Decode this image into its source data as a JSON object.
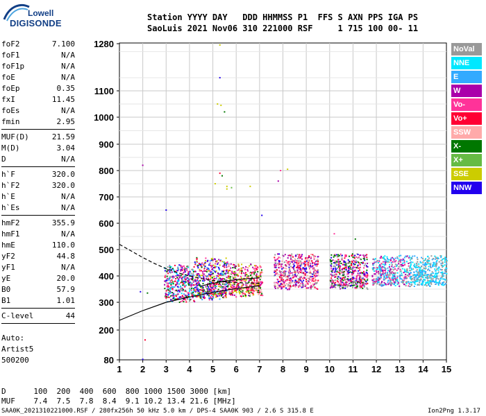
{
  "logo": {
    "line1": "Lowell",
    "line2": "DIGISONDE"
  },
  "header": {
    "row1": "Station YYYY DAY   DDD HHMMSS P1  FFS S AXN PPS IGA PS",
    "row2": "SaoLuis 2021 Nov06 310 221000 RSF     1 715 100 00- 11"
  },
  "params_groups": [
    [
      {
        "label": "foF2",
        "value": "7.100"
      },
      {
        "label": "foF1",
        "value": "N/A"
      },
      {
        "label": "foF1p",
        "value": "N/A"
      },
      {
        "label": "foE",
        "value": "N/A"
      },
      {
        "label": "foEp",
        "value": "0.35"
      },
      {
        "label": "fxI",
        "value": "11.45"
      },
      {
        "label": "foEs",
        "value": "N/A"
      },
      {
        "label": "fmin",
        "value": "2.95"
      }
    ],
    [
      {
        "label": "MUF(D)",
        "value": "21.59"
      },
      {
        "label": "M(D)",
        "value": "3.04"
      },
      {
        "label": "D",
        "value": "N/A"
      }
    ],
    [
      {
        "label": "h`F",
        "value": "320.0"
      },
      {
        "label": "h`F2",
        "value": "320.0"
      },
      {
        "label": "h`E",
        "value": "N/A"
      },
      {
        "label": "h`Es",
        "value": "N/A"
      }
    ],
    [
      {
        "label": "hmF2",
        "value": "355.9"
      },
      {
        "label": "hmF1",
        "value": "N/A"
      },
      {
        "label": "hmE",
        "value": "110.0"
      },
      {
        "label": "yF2",
        "value": "44.8"
      },
      {
        "label": "yF1",
        "value": "N/A"
      },
      {
        "label": "yE",
        "value": "20.0"
      },
      {
        "label": "B0",
        "value": "57.9"
      },
      {
        "label": "B1",
        "value": "1.01"
      }
    ],
    [
      {
        "label": "C-level",
        "value": "44"
      }
    ]
  ],
  "notes": [
    "Auto:",
    "Artist5",
    "500200"
  ],
  "legend": [
    {
      "label": "NoVal",
      "color": "#999999"
    },
    {
      "label": "NNE",
      "color": "#00e8ff"
    },
    {
      "label": "E",
      "color": "#33aaff"
    },
    {
      "label": "W",
      "color": "#aa00aa"
    },
    {
      "label": "Vo-",
      "color": "#ff3399"
    },
    {
      "label": "Vo+",
      "color": "#ff0033"
    },
    {
      "label": "SSW",
      "color": "#ffaaaa"
    },
    {
      "label": "X-",
      "color": "#007700"
    },
    {
      "label": "X+",
      "color": "#66bb44"
    },
    {
      "label": "SSE",
      "color": "#cccc00"
    },
    {
      "label": "NNW",
      "color": "#2200ee"
    }
  ],
  "bottom": {
    "d_row": "D      100  200  400  600  800 1000 1500 3000 [km]",
    "muf_row": "MUF    7.4  7.5  7.8  8.4  9.1 10.2 13.4 21.6 [MHz]"
  },
  "footer": {
    "left": "SAA0K_2021310221000.RSF / 280fx256h 50 kHz 5.0 km / DPS-4 SAA0K 903 / 2.6 S 315.8 E",
    "right": "Ion2Png 1.3.17"
  },
  "chart_data": {
    "type": "scatter",
    "xlabel": "",
    "ylabel": "",
    "xlim": [
      1,
      15
    ],
    "ylim": [
      80,
      1280
    ],
    "y_scale": "log-like",
    "xticks": [
      1,
      2,
      3,
      4,
      5,
      6,
      7,
      8,
      9,
      10,
      11,
      12,
      13,
      14,
      15
    ],
    "yticks": [
      80,
      200,
      300,
      400,
      500,
      600,
      700,
      800,
      900,
      1000,
      1100,
      1280
    ],
    "grid": true,
    "legend_position": "right",
    "clusters": [
      {
        "x": [
          2.9,
          4.2
        ],
        "y": [
          300,
          470
        ],
        "colors": [
          "#aa00aa",
          "#2200ee",
          "#ff3399",
          "#ff0033",
          "#33aaff",
          "#00e8ff",
          "#007700",
          "#999999"
        ]
      },
      {
        "x": [
          4.2,
          5.6
        ],
        "y": [
          310,
          500
        ],
        "colors": [
          "#aa00aa",
          "#ff0033",
          "#cccc00",
          "#007700",
          "#ff3399",
          "#33aaff",
          "#2200ee"
        ]
      },
      {
        "x": [
          5.6,
          7.1
        ],
        "y": [
          320,
          470
        ],
        "colors": [
          "#ff3399",
          "#ff0033",
          "#aa00aa",
          "#ffaaaa",
          "#007700",
          "#cccc00"
        ]
      },
      {
        "x": [
          7.6,
          9.5
        ],
        "y": [
          350,
          510
        ],
        "colors": [
          "#ff3399",
          "#ffaaaa",
          "#999999",
          "#aa00aa",
          "#ff0033",
          "#2200ee"
        ]
      },
      {
        "x": [
          10.0,
          11.6
        ],
        "y": [
          350,
          510
        ],
        "colors": [
          "#ff0033",
          "#ff3399",
          "#aa00aa",
          "#999999",
          "#007700",
          "#2200ee"
        ]
      },
      {
        "x": [
          11.8,
          13.4
        ],
        "y": [
          360,
          500
        ],
        "colors": [
          "#00e8ff",
          "#33aaff",
          "#ff3399",
          "#999999",
          "#aa00aa"
        ]
      },
      {
        "x": [
          13.4,
          15.0
        ],
        "y": [
          360,
          500
        ],
        "colors": [
          "#00e8ff",
          "#33aaff",
          "#999999"
        ]
      }
    ],
    "outliers": [
      {
        "x": 5.3,
        "y": 1150,
        "color": "#2200ee"
      },
      {
        "x": 5.35,
        "y": 1045,
        "color": "#cccc00"
      },
      {
        "x": 5.2,
        "y": 1050,
        "color": "#cccc00"
      },
      {
        "x": 5.5,
        "y": 1020,
        "color": "#007700"
      },
      {
        "x": 5.3,
        "y": 790,
        "color": "#ff0033"
      },
      {
        "x": 5.4,
        "y": 780,
        "color": "#007700"
      },
      {
        "x": 5.6,
        "y": 740,
        "color": "#cccc00"
      },
      {
        "x": 5.6,
        "y": 730,
        "color": "#cccc00"
      },
      {
        "x": 5.8,
        "y": 735,
        "color": "#66bb44"
      },
      {
        "x": 6.6,
        "y": 740,
        "color": "#cccc00"
      },
      {
        "x": 5.1,
        "y": 750,
        "color": "#cccc00"
      },
      {
        "x": 2.0,
        "y": 820,
        "color": "#aa00aa"
      },
      {
        "x": 7.9,
        "y": 800,
        "color": "#ff3399"
      },
      {
        "x": 8.2,
        "y": 805,
        "color": "#cccc00"
      },
      {
        "x": 7.8,
        "y": 760,
        "color": "#aa00aa"
      },
      {
        "x": 3.0,
        "y": 650,
        "color": "#2200ee"
      },
      {
        "x": 7.1,
        "y": 630,
        "color": "#2200ee"
      },
      {
        "x": 10.2,
        "y": 560,
        "color": "#ff3399"
      },
      {
        "x": 2.1,
        "y": 160,
        "color": "#ff0033"
      },
      {
        "x": 2.0,
        "y": 82,
        "color": "#2200ee"
      },
      {
        "x": 1.9,
        "y": 340,
        "color": "#2200ee"
      },
      {
        "x": 2.2,
        "y": 335,
        "color": "#007700"
      },
      {
        "x": 5.3,
        "y": 1275,
        "color": "#cccc00"
      },
      {
        "x": 11.1,
        "y": 540,
        "color": "#007700"
      }
    ],
    "curves": [
      {
        "style": "dashed",
        "x": [
          1.0,
          1.5,
          2.0,
          2.5,
          3.0,
          3.5,
          4.0,
          4.5,
          5.0,
          5.5,
          6.0,
          6.5,
          7.0
        ],
        "y": [
          520,
          495,
          470,
          447,
          428,
          412,
          400,
          390,
          383,
          378,
          375,
          373,
          372
        ]
      },
      {
        "style": "solid",
        "x": [
          1.0,
          2.0,
          3.0,
          4.0,
          5.0,
          6.0,
          7.0
        ],
        "y": [
          235,
          270,
          300,
          320,
          338,
          352,
          363
        ]
      },
      {
        "style": "solid",
        "x": [
          4.5,
          5.0,
          5.5,
          6.0,
          6.5,
          7.0
        ],
        "y": [
          362,
          372,
          380,
          386,
          390,
          393
        ]
      }
    ]
  }
}
